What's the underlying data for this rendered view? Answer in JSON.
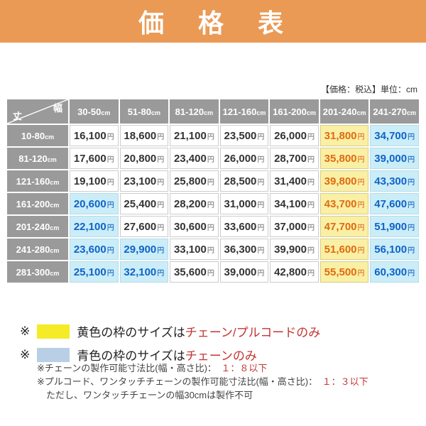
{
  "banner": {
    "title": "価　格　表",
    "bg_color": "#EA9A55"
  },
  "table_note": "【価格：税込】単位：cm",
  "price_table": {
    "corner": {
      "top_right_label": "幅",
      "bottom_left_label": "丈"
    },
    "unit_suffix": "cm",
    "yen_suffix": "円",
    "header_bg_color": "#9A9A9A",
    "highlight_yellow_bg": "#FAF0A5",
    "highlight_blue_bg": "#CBEDF8",
    "columns": [
      "30-50",
      "51-80",
      "81-120",
      "121-160",
      "161-200",
      "201-240",
      "241-270"
    ],
    "rows": [
      {
        "label": "10-80",
        "prices": [
          "16,100",
          "18,600",
          "21,100",
          "23,500",
          "26,000",
          "31,800",
          "34,700"
        ],
        "highlights": [
          "",
          "",
          "",
          "",
          "",
          "y",
          "b"
        ]
      },
      {
        "label": "81-120",
        "prices": [
          "17,600",
          "20,800",
          "23,400",
          "26,000",
          "28,700",
          "35,800",
          "39,000"
        ],
        "highlights": [
          "",
          "",
          "",
          "",
          "",
          "y",
          "b"
        ]
      },
      {
        "label": "121-160",
        "prices": [
          "19,100",
          "23,100",
          "25,800",
          "28,500",
          "31,400",
          "39,800",
          "43,300"
        ],
        "highlights": [
          "",
          "",
          "",
          "",
          "",
          "y",
          "b"
        ]
      },
      {
        "label": "161-200",
        "prices": [
          "20,600",
          "25,400",
          "28,200",
          "31,000",
          "34,100",
          "43,700",
          "47,600"
        ],
        "highlights": [
          "b",
          "",
          "",
          "",
          "",
          "y",
          "b"
        ]
      },
      {
        "label": "201-240",
        "prices": [
          "22,100",
          "27,600",
          "30,600",
          "33,600",
          "37,000",
          "47,700",
          "51,900"
        ],
        "highlights": [
          "b",
          "",
          "",
          "",
          "",
          "y",
          "b"
        ]
      },
      {
        "label": "241-280",
        "prices": [
          "23,600",
          "29,900",
          "33,100",
          "36,300",
          "39,900",
          "51,600",
          "56,100"
        ],
        "highlights": [
          "b",
          "b",
          "",
          "",
          "",
          "y",
          "b"
        ]
      },
      {
        "label": "281-300",
        "prices": [
          "25,100",
          "32,100",
          "35,600",
          "39,000",
          "42,800",
          "55,500",
          "60,300"
        ],
        "highlights": [
          "b",
          "b",
          "",
          "",
          "",
          "y",
          "b"
        ]
      }
    ]
  },
  "legend": {
    "marker": "※",
    "items": [
      {
        "swatch_color": "#F5EB27",
        "text": "黄色の枠のサイズは",
        "red_text": "チェーン/プルコードのみ"
      },
      {
        "swatch_color": "#B9CFE5",
        "text": "青色の枠のサイズは",
        "red_text": "チェーンのみ"
      }
    ]
  },
  "sub_notes": [
    {
      "prefix": "※チェーンの製作可能寸法比(幅・高さ比)：　",
      "red": "１：８以下"
    },
    {
      "prefix": "※プルコード、ワンタッチチェーンの製作可能寸法比(幅・高さ比)：　",
      "red": "１：３以下"
    },
    {
      "prefix": "　ただし、ワンタッチチェーンの幅30cmは製作不可",
      "red": ""
    }
  ]
}
